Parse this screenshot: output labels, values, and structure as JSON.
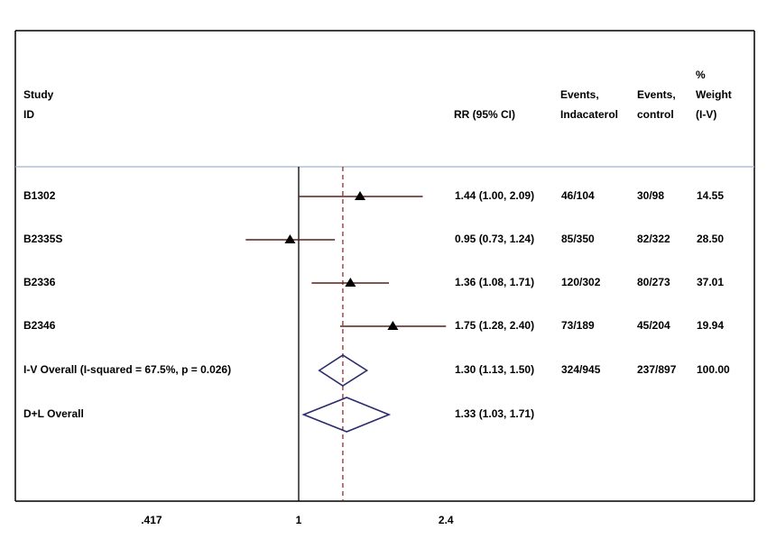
{
  "chart_data": {
    "type": "forest",
    "header": {
      "study_line1": "Study",
      "study_line2": "ID",
      "rr": "RR (95% CI)",
      "events_ind_line1": "Events,",
      "events_ind_line2": "Indacaterol",
      "events_ctrl_line1": "Events,",
      "events_ctrl_line2": "control",
      "weight_line1": "%",
      "weight_line2": "Weight",
      "weight_line3": "(I-V)"
    },
    "studies": [
      {
        "id": "B1302",
        "rr": 1.44,
        "lo": 1.0,
        "hi": 2.09,
        "rr_text": "1.44 (1.00, 2.09)",
        "events_ind": "46/104",
        "events_ctrl": "30/98",
        "weight": "14.55"
      },
      {
        "id": "B2335S",
        "rr": 0.95,
        "lo": 0.73,
        "hi": 1.24,
        "rr_text": "0.95 (0.73, 1.24)",
        "events_ind": "85/350",
        "events_ctrl": "82/322",
        "weight": "28.50"
      },
      {
        "id": "B2336",
        "rr": 1.36,
        "lo": 1.08,
        "hi": 1.71,
        "rr_text": "1.36 (1.08, 1.71)",
        "events_ind": "120/302",
        "events_ctrl": "80/273",
        "weight": "37.01"
      },
      {
        "id": "B2346",
        "rr": 1.75,
        "lo": 1.28,
        "hi": 2.4,
        "rr_text": "1.75 (1.28, 2.40)",
        "events_ind": "73/189",
        "events_ctrl": "45/204",
        "weight": "19.94"
      }
    ],
    "overall": [
      {
        "id": "I-V Overall  (I-squared = 67.5%, p = 0.026)",
        "rr": 1.3,
        "lo": 1.13,
        "hi": 1.5,
        "rr_text": "1.30 (1.13, 1.50)",
        "events_ind": "324/945",
        "events_ctrl": "237/897",
        "weight": "100.00"
      },
      {
        "id": "D+L Overall",
        "rr": 1.33,
        "lo": 1.03,
        "hi": 1.71,
        "rr_text": "1.33 (1.03, 1.71)",
        "events_ind": "",
        "events_ctrl": "",
        "weight": ""
      }
    ],
    "x_scale": "log",
    "null_value": 1,
    "overall_line_value": 1.3,
    "x_ticks": [
      0.417,
      1,
      2.4
    ],
    "x_tick_labels": [
      ".417",
      "1",
      "2.4"
    ],
    "colors": {
      "ci_line": "#5a1f1f",
      "marker": "#000000",
      "diamond": "#2b2b6b",
      "overall_line": "#8b1a1a",
      "header_rule": "#9fb8d0"
    }
  }
}
